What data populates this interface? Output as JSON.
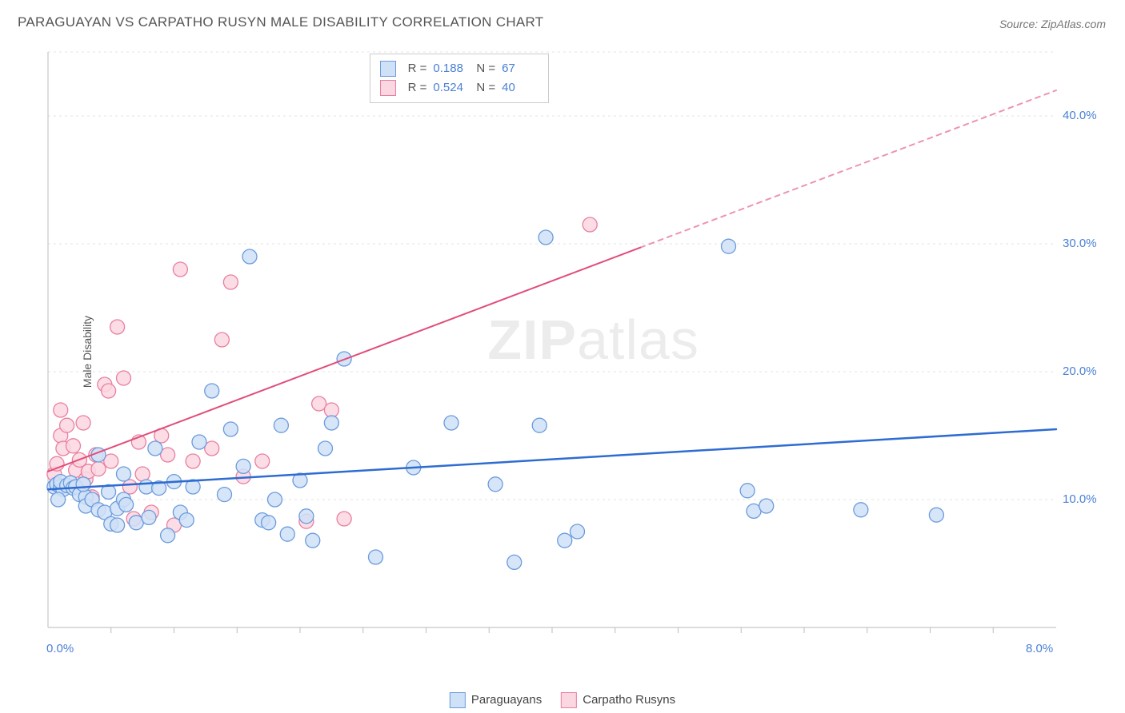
{
  "title": "PARAGUAYAN VS CARPATHO RUSYN MALE DISABILITY CORRELATION CHART",
  "source_label": "Source: ZipAtlas.com",
  "ylabel": "Male Disability",
  "watermark_a": "ZIP",
  "watermark_b": "atlas",
  "chart": {
    "type": "scatter",
    "background_color": "#ffffff",
    "grid_color": "#e3e3e3",
    "axis_color": "#c7c7c7",
    "tick_color": "#bcbcbc",
    "xlim": [
      0,
      8
    ],
    "ylim": [
      0,
      45
    ],
    "x_origin_label": "0.0%",
    "x_max_label": "8.0%",
    "y_ticks": [
      10,
      20,
      30,
      40
    ],
    "y_tick_labels": [
      "10.0%",
      "20.0%",
      "30.0%",
      "40.0%"
    ],
    "x_minor_ticks": [
      0.5,
      1.0,
      1.5,
      2.0,
      2.5,
      3.0,
      3.5,
      4.0,
      4.5,
      5.0,
      5.5,
      6.0,
      6.5,
      7.0,
      7.5
    ],
    "marker_radius": 9,
    "marker_stroke_width": 1.3,
    "series": {
      "blue": {
        "label": "Paraguayans",
        "fill": "#cfe1f7",
        "stroke": "#6b9bdc",
        "line_color": "#2e6cd1",
        "line_width": 2.5,
        "R": "0.188",
        "N": "67",
        "trend": {
          "x1": 0.0,
          "y1": 10.8,
          "x2": 8.0,
          "y2": 15.5,
          "dash_from_x": null
        },
        "points": [
          [
            0.05,
            11.0
          ],
          [
            0.07,
            11.2
          ],
          [
            0.1,
            11.0
          ],
          [
            0.12,
            10.8
          ],
          [
            0.1,
            11.4
          ],
          [
            0.15,
            11.1
          ],
          [
            0.18,
            11.3
          ],
          [
            0.08,
            10.0
          ],
          [
            0.2,
            10.9
          ],
          [
            0.22,
            11.0
          ],
          [
            0.25,
            10.4
          ],
          [
            0.3,
            10.2
          ],
          [
            0.28,
            11.2
          ],
          [
            0.3,
            9.5
          ],
          [
            0.35,
            10.0
          ],
          [
            0.4,
            9.2
          ],
          [
            0.45,
            9.0
          ],
          [
            0.48,
            10.6
          ],
          [
            0.55,
            9.3
          ],
          [
            0.5,
            8.1
          ],
          [
            0.55,
            8.0
          ],
          [
            0.6,
            10.0
          ],
          [
            0.62,
            9.6
          ],
          [
            0.7,
            8.2
          ],
          [
            0.78,
            11.0
          ],
          [
            0.8,
            8.6
          ],
          [
            0.85,
            14.0
          ],
          [
            0.88,
            10.9
          ],
          [
            0.95,
            7.2
          ],
          [
            1.0,
            11.4
          ],
          [
            1.05,
            9.0
          ],
          [
            1.1,
            8.4
          ],
          [
            1.15,
            11.0
          ],
          [
            1.2,
            14.5
          ],
          [
            1.3,
            18.5
          ],
          [
            1.4,
            10.4
          ],
          [
            1.45,
            15.5
          ],
          [
            1.55,
            12.6
          ],
          [
            1.6,
            29.0
          ],
          [
            1.7,
            8.4
          ],
          [
            1.75,
            8.2
          ],
          [
            1.8,
            10.0
          ],
          [
            1.85,
            15.8
          ],
          [
            1.9,
            7.3
          ],
          [
            2.0,
            11.5
          ],
          [
            2.05,
            8.7
          ],
          [
            2.1,
            6.8
          ],
          [
            2.2,
            14.0
          ],
          [
            2.25,
            16.0
          ],
          [
            2.35,
            21.0
          ],
          [
            2.6,
            5.5
          ],
          [
            2.9,
            12.5
          ],
          [
            3.2,
            16.0
          ],
          [
            3.55,
            11.2
          ],
          [
            3.7,
            5.1
          ],
          [
            3.9,
            15.8
          ],
          [
            3.95,
            30.5
          ],
          [
            4.1,
            6.8
          ],
          [
            4.2,
            7.5
          ],
          [
            5.4,
            29.8
          ],
          [
            5.55,
            10.7
          ],
          [
            5.6,
            9.1
          ],
          [
            5.7,
            9.5
          ],
          [
            6.45,
            9.2
          ],
          [
            7.05,
            8.8
          ],
          [
            0.4,
            13.5
          ],
          [
            0.6,
            12.0
          ]
        ]
      },
      "pink": {
        "label": "Carpatho Rusyns",
        "fill": "#fbd7e1",
        "stroke": "#e97fa0",
        "line_color": "#e14d79",
        "line_width": 2,
        "R": "0.524",
        "N": "40",
        "trend": {
          "x1": 0.0,
          "y1": 12.2,
          "x2": 8.0,
          "y2": 42.0,
          "dash_from_x": 4.7
        },
        "points": [
          [
            0.05,
            12.0
          ],
          [
            0.07,
            12.8
          ],
          [
            0.1,
            15.0
          ],
          [
            0.12,
            14.0
          ],
          [
            0.15,
            15.8
          ],
          [
            0.1,
            17.0
          ],
          [
            0.2,
            14.2
          ],
          [
            0.22,
            12.3
          ],
          [
            0.25,
            13.1
          ],
          [
            0.28,
            16.0
          ],
          [
            0.3,
            11.6
          ],
          [
            0.32,
            12.2
          ],
          [
            0.35,
            10.2
          ],
          [
            0.38,
            13.5
          ],
          [
            0.4,
            12.4
          ],
          [
            0.45,
            19.0
          ],
          [
            0.48,
            18.5
          ],
          [
            0.5,
            13.0
          ],
          [
            0.55,
            23.5
          ],
          [
            0.6,
            19.5
          ],
          [
            0.65,
            11.0
          ],
          [
            0.68,
            8.5
          ],
          [
            0.72,
            14.5
          ],
          [
            0.75,
            12.0
          ],
          [
            0.82,
            9.0
          ],
          [
            0.9,
            15.0
          ],
          [
            0.95,
            13.5
          ],
          [
            1.0,
            8.0
          ],
          [
            1.05,
            28.0
          ],
          [
            1.15,
            13.0
          ],
          [
            1.3,
            14.0
          ],
          [
            1.38,
            22.5
          ],
          [
            1.45,
            27.0
          ],
          [
            1.55,
            11.8
          ],
          [
            1.7,
            13.0
          ],
          [
            2.05,
            8.3
          ],
          [
            2.15,
            17.5
          ],
          [
            2.25,
            17.0
          ],
          [
            2.35,
            8.5
          ],
          [
            4.3,
            31.5
          ]
        ]
      }
    }
  },
  "stat_box": {
    "rows": [
      {
        "swatch": "blue",
        "R_label": "R =",
        "R": "0.188",
        "N_label": "N =",
        "N": "67"
      },
      {
        "swatch": "pink",
        "R_label": "R =",
        "R": "0.524",
        "N_label": "N =",
        "N": "40"
      }
    ]
  },
  "bottom_legend": [
    {
      "swatch": "blue",
      "label": "Paraguayans"
    },
    {
      "swatch": "pink",
      "label": "Carpatho Rusyns"
    }
  ]
}
